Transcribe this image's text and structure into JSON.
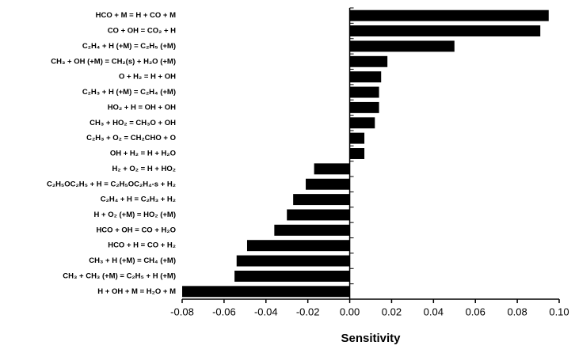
{
  "chart_data": {
    "type": "barh",
    "xlabel": "Sensitivity",
    "categories": [
      "HCO + M = H + CO + M",
      "CO + OH = CO₂ + H",
      "C₂H₄ + H (+M) = C₂H₅ (+M)",
      "CH₃ + OH (+M) = CH₂(s) + H₂O (+M)",
      "O + H₂ = H + OH",
      "C₂H₃ + H (+M) = C₂H₄ (+M)",
      "HO₂ + H = OH + OH",
      "CH₃ + HO₂ = CH₃O + OH",
      "C₂H₃ + O₂ = CH₂CHO + O",
      "OH + H₂ = H + H₂O",
      "H₂ + O₂ = H + HO₂",
      "C₂H₅OC₂H₅ + H = C₂H₅OC₂H₄-s + H₂",
      "C₂H₄ + H = C₂H₃ + H₂",
      "H + O₂ (+M) = HO₂ (+M)",
      "HCO + OH = CO + H₂O",
      "HCO + H = CO + H₂",
      "CH₃ + H (+M) = CH₄ (+M)",
      "CH₃ + CH₃ (+M) = C₂H₅ + H (+M)",
      "H + OH + M = H₂O + M"
    ],
    "values": [
      0.095,
      0.091,
      0.05,
      0.018,
      0.015,
      0.014,
      0.014,
      0.012,
      0.007,
      0.007,
      -0.017,
      -0.021,
      -0.027,
      -0.03,
      -0.036,
      -0.049,
      -0.054,
      -0.055,
      -0.08
    ],
    "color": "#000000",
    "xlim": [
      -0.08,
      0.1
    ],
    "xticks": [
      {
        "value": -0.08,
        "label": "-0.08"
      },
      {
        "value": -0.06,
        "label": "-0.06"
      },
      {
        "value": -0.04,
        "label": "-0.04"
      },
      {
        "value": -0.02,
        "label": "-0.02"
      },
      {
        "value": 0,
        "label": "0.00"
      },
      {
        "value": 0.02,
        "label": "0.02"
      },
      {
        "value": 0.04,
        "label": "0.04"
      },
      {
        "value": 0.06,
        "label": "0.06"
      },
      {
        "value": 0.08,
        "label": "0.08"
      },
      {
        "value": 0.1,
        "label": "0.10"
      }
    ]
  }
}
